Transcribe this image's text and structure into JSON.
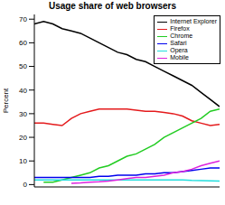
{
  "chart_data": {
    "type": "line",
    "title": "Usage share of web browsers",
    "y_label": "Percent",
    "x": [
      0,
      1,
      2,
      3,
      4,
      5,
      6,
      7,
      8,
      9,
      10,
      11,
      12,
      13,
      14,
      15,
      16,
      17,
      18,
      19,
      20
    ],
    "xlim": [
      0,
      20
    ],
    "ylim": [
      -1,
      72
    ],
    "yticks": [
      0,
      10,
      20,
      30,
      40,
      50,
      60,
      70
    ],
    "tick_labels": "y",
    "grid": false,
    "legend": "top-right",
    "series": [
      {
        "name": "Internet Explorer",
        "color": "#000000",
        "values": [
          68,
          69,
          68,
          66,
          65,
          64,
          62,
          60,
          58,
          56,
          55,
          53,
          52,
          50,
          48,
          46,
          44,
          42,
          39,
          36,
          33
        ]
      },
      {
        "name": "Firefox",
        "color": "#e41a1c",
        "values": [
          26,
          26,
          25.5,
          25,
          28,
          30,
          31,
          32,
          32,
          32,
          32,
          31.5,
          31,
          31,
          30.5,
          30,
          29,
          27,
          26,
          25,
          25.5
        ]
      },
      {
        "name": "Chrome",
        "color": "#22cc22",
        "values": [
          null,
          1,
          1,
          2,
          3,
          4,
          5,
          7,
          8,
          10,
          12,
          13,
          15,
          17,
          20,
          22,
          24,
          26,
          28,
          31,
          32
        ]
      },
      {
        "name": "Safari",
        "color": "#0000ee",
        "values": [
          3,
          3,
          3,
          3,
          3,
          3,
          3,
          3.5,
          3.5,
          4,
          4,
          4,
          4.5,
          4.5,
          5,
          5,
          5.5,
          6,
          6.5,
          7,
          7
        ]
      },
      {
        "name": "Opera",
        "color": "#22dddd",
        "values": [
          2,
          2,
          2,
          2,
          2,
          2,
          2,
          2,
          2,
          2,
          2,
          2,
          2,
          2,
          2,
          2,
          2,
          1.8,
          1.7,
          1.6,
          1.5
        ]
      },
      {
        "name": "Mobile",
        "color": "#dd22dd",
        "values": [
          null,
          null,
          null,
          null,
          0.5,
          0.7,
          1,
          1.2,
          1.5,
          2,
          2.5,
          3,
          3,
          3.5,
          4,
          5,
          5.5,
          6.5,
          8,
          9,
          10
        ]
      }
    ]
  }
}
